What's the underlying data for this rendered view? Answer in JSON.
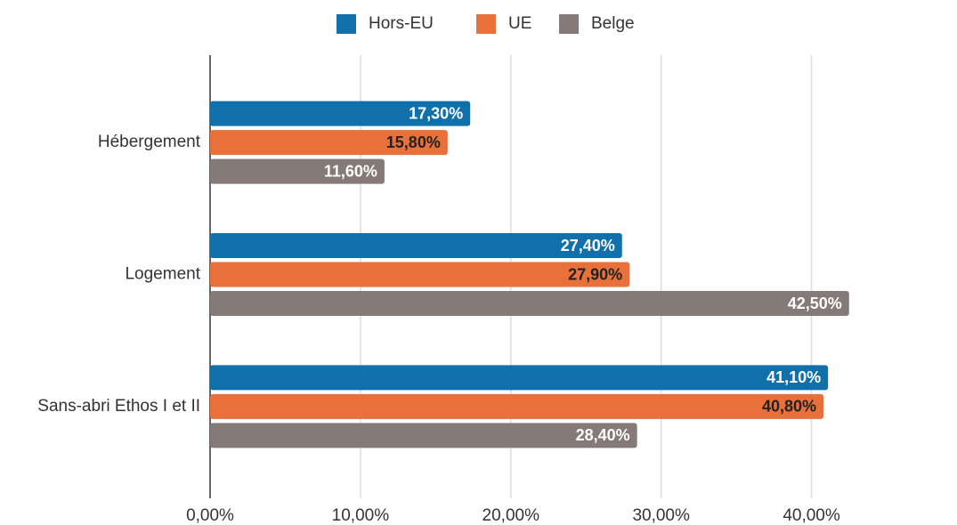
{
  "chart_data": {
    "type": "hbar",
    "categories": [
      "Hébergement",
      "Logement",
      "Sans-abri Ethos I et II"
    ],
    "series": [
      {
        "name": "Hors-EU",
        "color": "#1170aa",
        "values": [
          17.3,
          27.4,
          41.1
        ],
        "value_labels": [
          "17,30%",
          "27,40%",
          "41,10%"
        ]
      },
      {
        "name": "UE",
        "color": "#e8703a",
        "values": [
          15.8,
          27.9,
          40.8
        ],
        "value_labels": [
          "15,80%",
          "27,90%",
          "40,80%"
        ]
      },
      {
        "name": "Belge",
        "color": "#857a78",
        "values": [
          11.6,
          42.5,
          28.4
        ],
        "value_labels": [
          "11,60%",
          "42,50%",
          "28,40%"
        ]
      }
    ],
    "xlim": [
      0,
      45
    ],
    "xticks": [
      {
        "value": 0,
        "label": "0,00%"
      },
      {
        "value": 10,
        "label": "10,00%"
      },
      {
        "value": 20,
        "label": "20,00%"
      },
      {
        "value": 30,
        "label": "30,00%"
      },
      {
        "value": 40,
        "label": "40,00%"
      }
    ],
    "grid": true,
    "legend": "top"
  }
}
